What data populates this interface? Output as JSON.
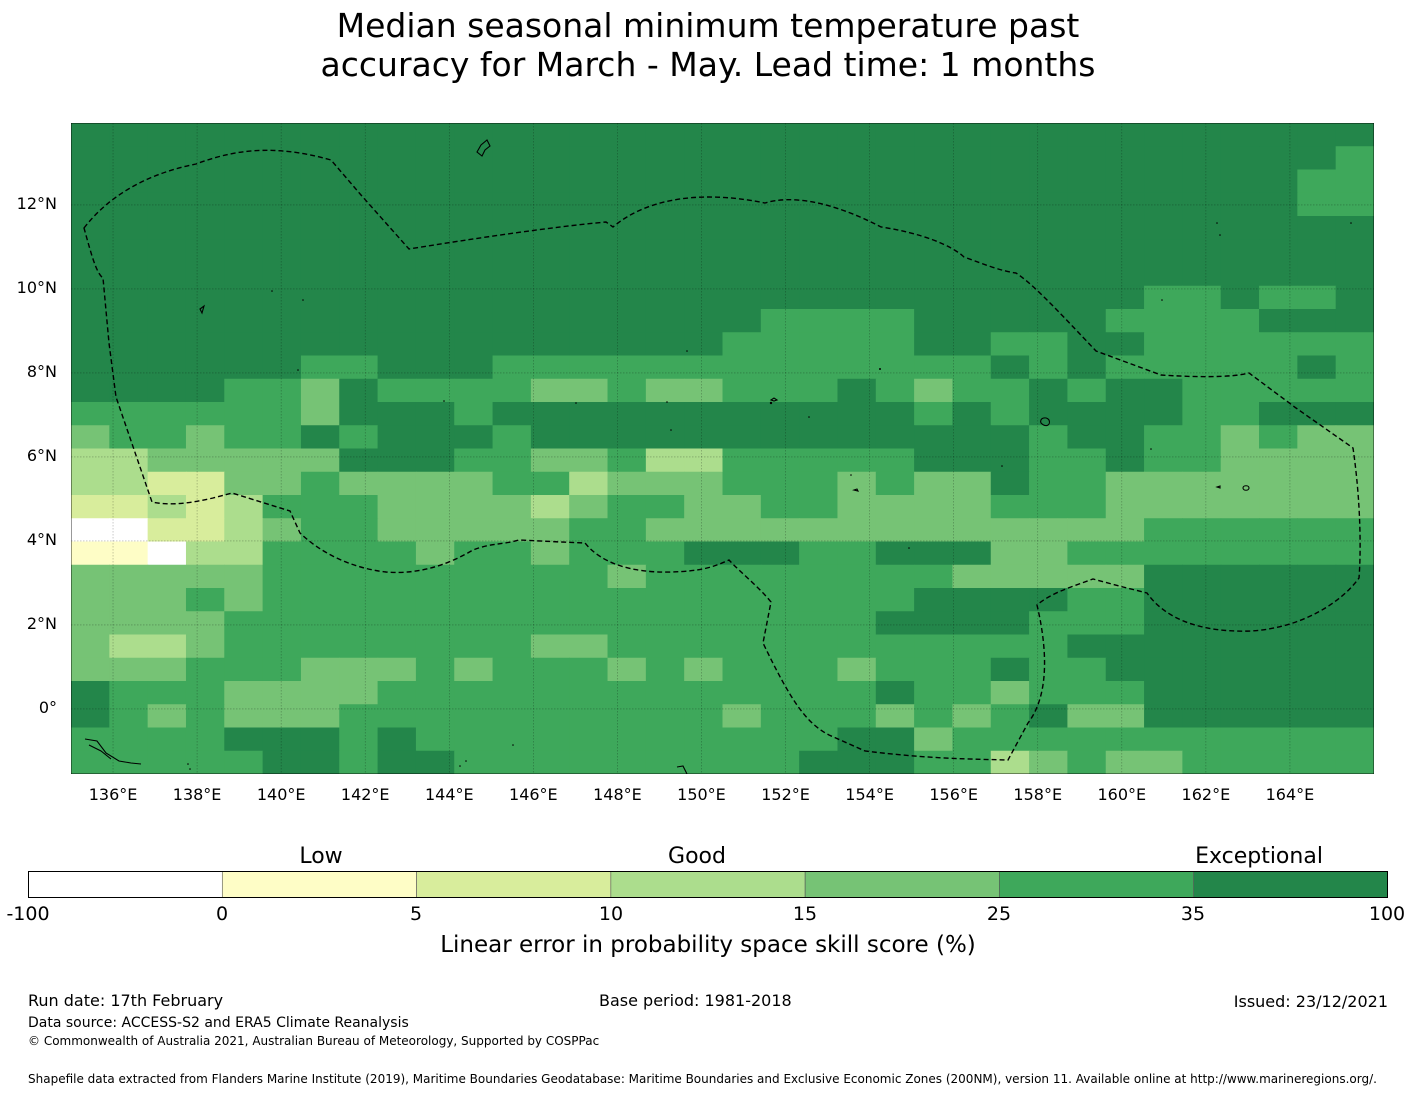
{
  "title_line1": "Median seasonal minimum temperature past",
  "title_line2": "accuracy for March - May. Lead time: 1 months",
  "map": {
    "lon_ticks": [
      "136°E",
      "138°E",
      "140°E",
      "142°E",
      "144°E",
      "146°E",
      "148°E",
      "150°E",
      "152°E",
      "154°E",
      "156°E",
      "158°E",
      "160°E",
      "162°E",
      "164°E"
    ],
    "lat_ticks": [
      "12°N",
      "10°N",
      "8°N",
      "6°N",
      "4°N",
      "2°N",
      "0°"
    ],
    "lon_range": [
      135.0,
      166.0
    ],
    "lat_range": [
      -1.55,
      13.95
    ],
    "gridlines": true
  },
  "colorbar": {
    "labels": [
      "Low",
      "Good",
      "Exceptional"
    ],
    "ticks": [
      "-100",
      "0",
      "5",
      "10",
      "15",
      "25",
      "35",
      "100"
    ],
    "colors": [
      "#ffffff",
      "#fefdc6",
      "#d8ed9c",
      "#acdd8d",
      "#76c375",
      "#3ea85b",
      "#23864a"
    ],
    "title": "Linear error in probability space skill score (%)"
  },
  "footer": {
    "run_date": "Run date: 17th February",
    "base_period": "Base period: 1981-2018",
    "issued": "Issued: 23/12/2021",
    "data_source": "Data source: ACCESS-S2 and ERA5 Climate Reanalysis",
    "copyright": "© Commonwealth of Australia 2021, Australian Bureau of Meteorology, Supported by COSPPac",
    "shapefile": "Shapefile data extracted from Flanders Marine Institute (2019), Maritime Boundaries Geodatabase: Maritime Boundaries and Exclusive Economic Zones (200NM), version 11. Available online at http://www.marineregions.org/."
  }
}
